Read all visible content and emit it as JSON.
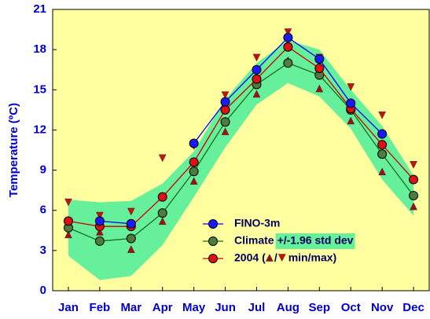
{
  "chart_data": {
    "type": "line",
    "y_label": "Temperature (ºC)",
    "categories": [
      "Jan",
      "Feb",
      "Mar",
      "Apr",
      "May",
      "Jun",
      "Jul",
      "Aug",
      "Sep",
      "Oct",
      "Nov",
      "Dec"
    ],
    "ylim": [
      0,
      21
    ],
    "yticks": [
      0,
      3,
      6,
      9,
      12,
      15,
      18,
      21
    ],
    "background": "#ffffa0",
    "band": {
      "name": "+/-1.96 std dev",
      "color": "#66f09c",
      "upper": [
        6.8,
        6.6,
        6.7,
        8.0,
        10.4,
        14.3,
        17.0,
        18.7,
        18.0,
        15.0,
        12.3,
        8.6
      ],
      "lower": [
        2.6,
        0.8,
        1.1,
        3.4,
        7.0,
        10.7,
        13.9,
        15.5,
        14.5,
        12.1,
        8.3,
        5.6
      ]
    },
    "series": [
      {
        "name": "FINO-3m",
        "color": "#0000ff",
        "marker_color": "#1a1aff",
        "values": [
          null,
          5.2,
          5.0,
          null,
          11.0,
          14.1,
          16.5,
          18.9,
          17.3,
          14.0,
          11.7,
          null
        ]
      },
      {
        "name": "Climate",
        "color": "#1b6b1b",
        "marker_color": "#4d7d3d",
        "values": [
          4.7,
          3.7,
          3.9,
          5.8,
          8.9,
          12.6,
          15.4,
          17.0,
          16.1,
          13.5,
          10.2,
          7.1
        ]
      },
      {
        "name": "2004",
        "color": "#cc0000",
        "marker_color": "#dd1111",
        "values": [
          5.2,
          4.8,
          4.8,
          7.0,
          9.6,
          13.5,
          15.8,
          18.2,
          16.6,
          13.6,
          10.9,
          8.3
        ]
      }
    ],
    "max": {
      "color": "#c8100a",
      "values": [
        6.6,
        5.6,
        5.9,
        9.9,
        10.8,
        14.6,
        17.4,
        19.3,
        17.4,
        15.2,
        13.1,
        9.4
      ]
    },
    "min": {
      "color": "#a01010",
      "values": [
        4.2,
        4.4,
        3.1,
        5.2,
        8.2,
        11.9,
        14.7,
        17.2,
        15.1,
        12.7,
        8.9,
        6.3
      ]
    },
    "minmax_legend_parts": [
      "(",
      "/",
      "min/max)"
    ]
  }
}
